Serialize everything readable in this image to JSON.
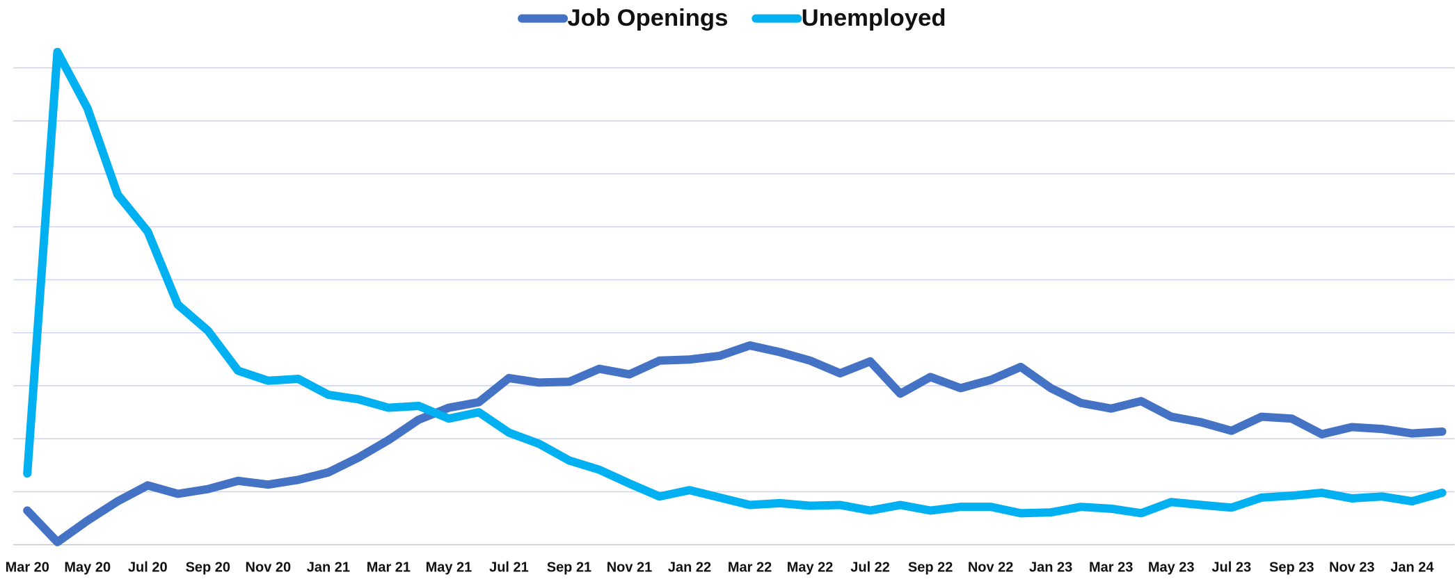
{
  "chart_data": {
    "type": "line",
    "categories": [
      "Mar 20",
      null,
      "May 20",
      null,
      "Jul 20",
      null,
      "Sep 20",
      null,
      "Nov 20",
      null,
      "Jan 21",
      null,
      "Mar 21",
      null,
      "May 21",
      null,
      "Jul 21",
      null,
      "Sep 21",
      null,
      "Nov 21",
      null,
      "Jan 22",
      null,
      "Mar 22",
      null,
      "May 22",
      null,
      "Jul 22",
      null,
      "Sep 22",
      null,
      "Nov 22",
      null,
      "Jan 23",
      null,
      "Mar 23",
      null,
      "May 23",
      null,
      "Jul 23",
      null,
      "Sep 23",
      null,
      "Nov 23",
      null,
      "Jan 24",
      null
    ],
    "series": [
      {
        "name": "Job Openings",
        "color": "#4472c4",
        "values": [
          5.29,
          4.1,
          4.91,
          5.64,
          6.24,
          5.92,
          6.1,
          6.41,
          6.27,
          6.45,
          6.73,
          7.29,
          7.95,
          8.72,
          9.17,
          9.38,
          10.29,
          10.12,
          10.15,
          10.64,
          10.43,
          10.95,
          10.99,
          11.13,
          11.52,
          11.27,
          10.95,
          10.47,
          10.92,
          9.7,
          10.33,
          9.91,
          10.22,
          10.71,
          9.91,
          9.35,
          9.14,
          9.42,
          8.83,
          8.62,
          8.3,
          8.83,
          8.76,
          8.17,
          8.44,
          8.37,
          8.2,
          8.27
        ]
      },
      {
        "name": "Unemployed",
        "color": "#00b0f0",
        "values": [
          6.69,
          22.6,
          20.47,
          17.22,
          15.82,
          13.06,
          12.08,
          10.57,
          10.19,
          10.26,
          9.66,
          9.49,
          9.17,
          9.24,
          8.76,
          9.0,
          8.23,
          7.81,
          7.18,
          6.83,
          6.31,
          5.82,
          6.06,
          5.78,
          5.5,
          5.57,
          5.47,
          5.5,
          5.29,
          5.5,
          5.29,
          5.43,
          5.43,
          5.19,
          5.22,
          5.43,
          5.36,
          5.19,
          5.61,
          5.5,
          5.4,
          5.78,
          5.85,
          5.96,
          5.75,
          5.82,
          5.64,
          5.96
        ]
      }
    ],
    "ylim": [
      4,
      24
    ],
    "yticks": [
      6,
      8,
      10,
      12,
      14,
      16,
      18,
      20,
      22
    ],
    "grid": true,
    "legend": "top"
  }
}
